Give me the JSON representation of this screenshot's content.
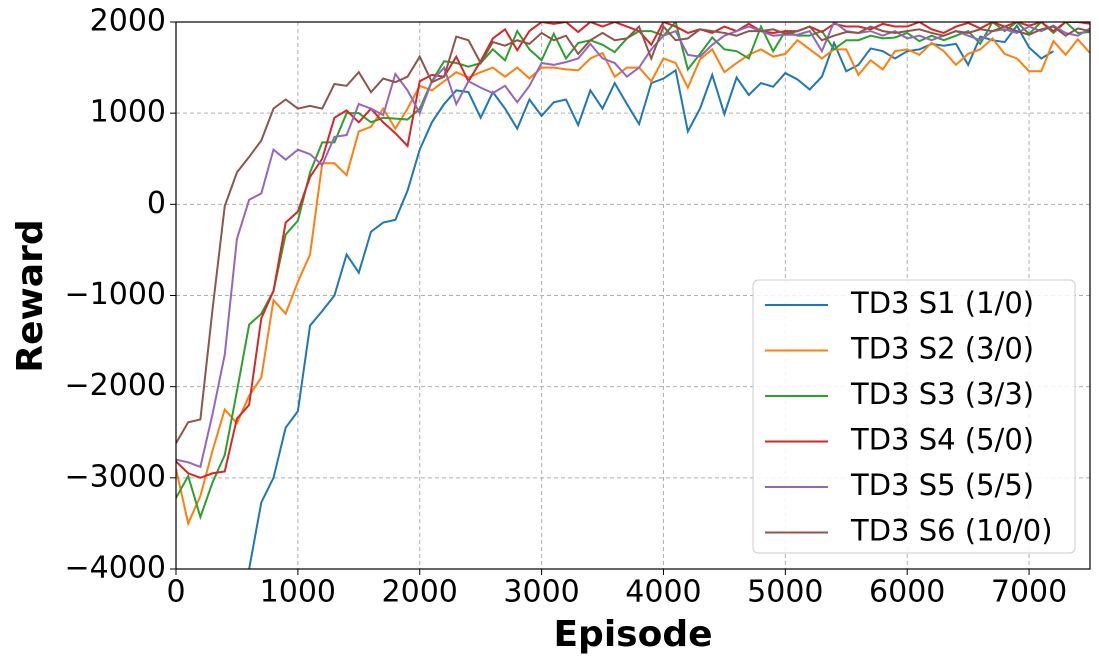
{
  "chart_data": {
    "type": "line",
    "xlabel": "Episode",
    "ylabel": "Reward",
    "xlim": [
      0,
      7500
    ],
    "ylim": [
      -4000,
      2000
    ],
    "xticks": [
      0,
      1000,
      2000,
      3000,
      4000,
      5000,
      6000,
      7000
    ],
    "yticks": [
      {
        "value": -4000,
        "label": "−4000"
      },
      {
        "value": -3000,
        "label": "−3000"
      },
      {
        "value": -2000,
        "label": "−2000"
      },
      {
        "value": -1000,
        "label": "−1000"
      },
      0,
      1000,
      2000
    ],
    "grid": true,
    "legend": "lower right",
    "x": [
      0,
      100,
      200,
      300,
      400,
      500,
      600,
      700,
      800,
      900,
      1000,
      1100,
      1200,
      1300,
      1400,
      1500,
      1600,
      1700,
      1800,
      1900,
      2000,
      2100,
      2200,
      2300,
      2400,
      2500,
      2600,
      2700,
      2800,
      2900,
      3000,
      3100,
      3200,
      3300,
      3400,
      3500,
      3600,
      3700,
      3800,
      3900,
      4000,
      4100,
      4200,
      4300,
      4400,
      4500,
      4600,
      4700,
      4800,
      4900,
      5000,
      5100,
      5200,
      5300,
      5400,
      5500,
      5600,
      5700,
      5800,
      5900,
      6000,
      6100,
      6200,
      6300,
      6400,
      6500,
      6600,
      6700,
      6800,
      6900,
      7000,
      7100,
      7200,
      7300,
      7400,
      7500
    ],
    "series": [
      {
        "name": "TD3 S1 (1/0)",
        "color": "#1f77b4",
        "values": [
          null,
          null,
          null,
          null,
          null,
          null,
          -4000,
          -3270,
          -3000,
          -2450,
          -2270,
          -1330,
          -1170,
          -1000,
          -550,
          -750,
          -300,
          -200,
          -170,
          150,
          600,
          900,
          1100,
          1250,
          1230,
          950,
          1230,
          1050,
          830,
          1150,
          970,
          1120,
          1150,
          870,
          1250,
          1050,
          1330,
          1100,
          880,
          1330,
          1380,
          1470,
          800,
          1050,
          1420,
          990,
          1390,
          1200,
          1330,
          1290,
          1440,
          1370,
          1260,
          1400,
          1770,
          1460,
          1530,
          1710,
          1680,
          1600,
          1680,
          1700,
          1760,
          1740,
          1760,
          1530,
          1840,
          1800,
          1780,
          1960,
          1720,
          1600,
          1680,
          null,
          null,
          null
        ]
      },
      {
        "name": "TD3 S2 (3/0)",
        "color": "#ff7f0e",
        "values": [
          -2900,
          -3500,
          -3200,
          -2700,
          -2250,
          -2400,
          -2100,
          -1900,
          -1050,
          -1200,
          -850,
          -550,
          450,
          450,
          320,
          800,
          850,
          1050,
          830,
          1050,
          1300,
          1250,
          1350,
          1450,
          1390,
          1450,
          1500,
          1400,
          1500,
          1380,
          1500,
          1500,
          1480,
          1470,
          1600,
          1660,
          1400,
          1500,
          1500,
          1350,
          1600,
          1550,
          1280,
          1590,
          1700,
          1450,
          1550,
          1640,
          1700,
          1620,
          1650,
          1800,
          1700,
          1600,
          1700,
          1700,
          1420,
          1580,
          1480,
          1680,
          1700,
          1640,
          1770,
          1680,
          1530,
          1650,
          1700,
          1820,
          1650,
          1600,
          1460,
          1460,
          1790,
          1640,
          1810,
          1660
        ]
      },
      {
        "name": "TD3 S3 (3/3)",
        "color": "#2ca02c",
        "values": [
          -3220,
          -2980,
          -3430,
          -3050,
          -2750,
          -2050,
          -1320,
          -1200,
          -950,
          -330,
          -180,
          350,
          680,
          680,
          1000,
          1000,
          900,
          950,
          940,
          930,
          1050,
          1350,
          1570,
          1550,
          1510,
          1550,
          1700,
          1580,
          1900,
          1700,
          1580,
          1870,
          1600,
          1770,
          1800,
          1750,
          1670,
          1820,
          1900,
          1900,
          1850,
          2000,
          1480,
          1650,
          1830,
          1700,
          1680,
          1600,
          1950,
          1680,
          1900,
          1850,
          1850,
          1900,
          1700,
          1800,
          1800,
          1850,
          1820,
          1830,
          1880,
          1790,
          1850,
          1800,
          1850,
          1900,
          1760,
          2000,
          1900,
          2000,
          1870,
          2000,
          1880,
          2000,
          1880,
          1890
        ]
      },
      {
        "name": "TD3 S4 (5/0)",
        "color": "#d62728",
        "values": [
          -2820,
          -2950,
          -3000,
          -2950,
          -2930,
          -2350,
          -2200,
          -1250,
          -950,
          -200,
          -80,
          300,
          500,
          950,
          1030,
          900,
          1050,
          900,
          780,
          640,
          1350,
          1420,
          1400,
          1620,
          1350,
          1570,
          1820,
          1920,
          1690,
          1900,
          2000,
          1980,
          2000,
          1890,
          2000,
          1950,
          2000,
          1950,
          1900,
          1750,
          2000,
          1950,
          1880,
          1920,
          1880,
          1950,
          1900,
          1980,
          1900,
          1880,
          1900,
          1900,
          1950,
          1890,
          1980,
          1950,
          1950,
          1920,
          1980,
          1950,
          1950,
          2000,
          1920,
          1880,
          1950,
          1990,
          1930,
          2000,
          1950,
          2000,
          1960,
          2000,
          1900,
          2000,
          2000,
          1980
        ]
      },
      {
        "name": "TD3 S5 (5/5)",
        "color": "#9467bd",
        "values": [
          -2800,
          -2830,
          -2880,
          -2300,
          -1650,
          -380,
          50,
          120,
          600,
          490,
          600,
          550,
          430,
          740,
          760,
          1100,
          1050,
          980,
          1430,
          1250,
          1000,
          1350,
          1500,
          1100,
          1350,
          1280,
          1220,
          1300,
          1120,
          1300,
          1550,
          1530,
          1560,
          1600,
          1760,
          1600,
          1550,
          1400,
          1500,
          1700,
          1850,
          1900,
          1640,
          1620,
          1750,
          1850,
          1900,
          1950,
          1900,
          1850,
          1860,
          1860,
          1900,
          1680,
          2000,
          1900,
          1880,
          1900,
          1850,
          1900,
          1820,
          1850,
          1800,
          1850,
          1900,
          1850,
          1800,
          1900,
          1920,
          1880,
          1950,
          1900,
          1960,
          1880,
          1850,
          1930
        ]
      },
      {
        "name": "TD3 S6 (10/0)",
        "color": "#8c564b",
        "values": [
          -2620,
          -2390,
          -2360,
          -1150,
          -20,
          350,
          520,
          700,
          1050,
          1150,
          1050,
          1080,
          1050,
          1320,
          1300,
          1450,
          1230,
          1380,
          1340,
          1400,
          1620,
          1340,
          1400,
          1840,
          1800,
          1550,
          1780,
          1740,
          1800,
          1760,
          1880,
          1800,
          1850,
          1650,
          1800,
          1880,
          1800,
          1820,
          1950,
          1600,
          1950,
          1800,
          1820,
          1920,
          1900,
          1880,
          1850,
          1900,
          1900,
          1920,
          1870,
          1900,
          1950,
          1800,
          1850,
          1890,
          1880,
          1950,
          1900,
          1880,
          1900,
          1920,
          1880,
          1850,
          1900,
          1880,
          1920,
          1900,
          1950,
          1900,
          1860,
          1920,
          1950,
          1850,
          1930,
          1900
        ]
      }
    ]
  }
}
